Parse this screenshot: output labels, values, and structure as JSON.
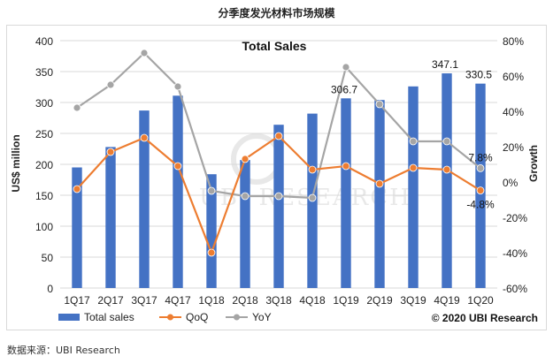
{
  "page": {
    "title": "分季度发光材料市场规模",
    "source_label": "数据来源：",
    "source_value": "UBI Research"
  },
  "colors": {
    "bar": "#4472c4",
    "qoq": "#ed7d31",
    "yoy": "#a5a5a5",
    "grid": "#d9d9d9",
    "text": "#222222"
  },
  "chart_data": {
    "type": "bar",
    "title": "Total Sales",
    "categories": [
      "1Q17",
      "2Q17",
      "3Q17",
      "4Q17",
      "1Q18",
      "2Q18",
      "3Q18",
      "4Q18",
      "1Q19",
      "2Q19",
      "3Q19",
      "4Q19",
      "1Q20"
    ],
    "series": [
      {
        "name": "Total sales",
        "type": "bar",
        "axis": "left",
        "values": [
          195,
          228,
          287,
          311,
          184,
          207,
          264,
          282,
          306.7,
          304,
          326,
          347.1,
          330.5
        ]
      },
      {
        "name": "QoQ",
        "type": "line",
        "axis": "right",
        "values": [
          -4,
          17,
          25,
          9,
          -40,
          13,
          26,
          7,
          9,
          -1,
          8,
          7,
          -4.8
        ]
      },
      {
        "name": "YoY",
        "type": "line",
        "axis": "right",
        "values": [
          42,
          55,
          73,
          54,
          -5,
          -8,
          -8,
          -9,
          65,
          44,
          23,
          23,
          7.8
        ]
      }
    ],
    "ylabel": "US$ million",
    "y2label": "Growth",
    "ylim": [
      0,
      400
    ],
    "y2lim": [
      -60,
      80
    ],
    "yticks": [
      "0",
      "50",
      "100",
      "150",
      "200",
      "250",
      "300",
      "350",
      "400"
    ],
    "y2ticks": [
      "-60%",
      "-40%",
      "-20%",
      "0%",
      "20%",
      "40%",
      "60%",
      "80%"
    ],
    "data_labels": [
      {
        "text": "306.7",
        "category": "1Q19",
        "series": "Total sales"
      },
      {
        "text": "347.1",
        "category": "4Q19",
        "series": "Total sales"
      },
      {
        "text": "330.5",
        "category": "1Q20",
        "series": "Total sales"
      },
      {
        "text": "7.8%",
        "category": "1Q20",
        "series": "YoY"
      },
      {
        "text": "-4.8%",
        "category": "1Q20",
        "series": "QoQ"
      }
    ],
    "legend": [
      "Total sales",
      "QoQ",
      "YoY"
    ],
    "legend_position": "bottom",
    "copyright": "© 2020 UBI Research",
    "watermark": "UBI RESEARCH"
  }
}
